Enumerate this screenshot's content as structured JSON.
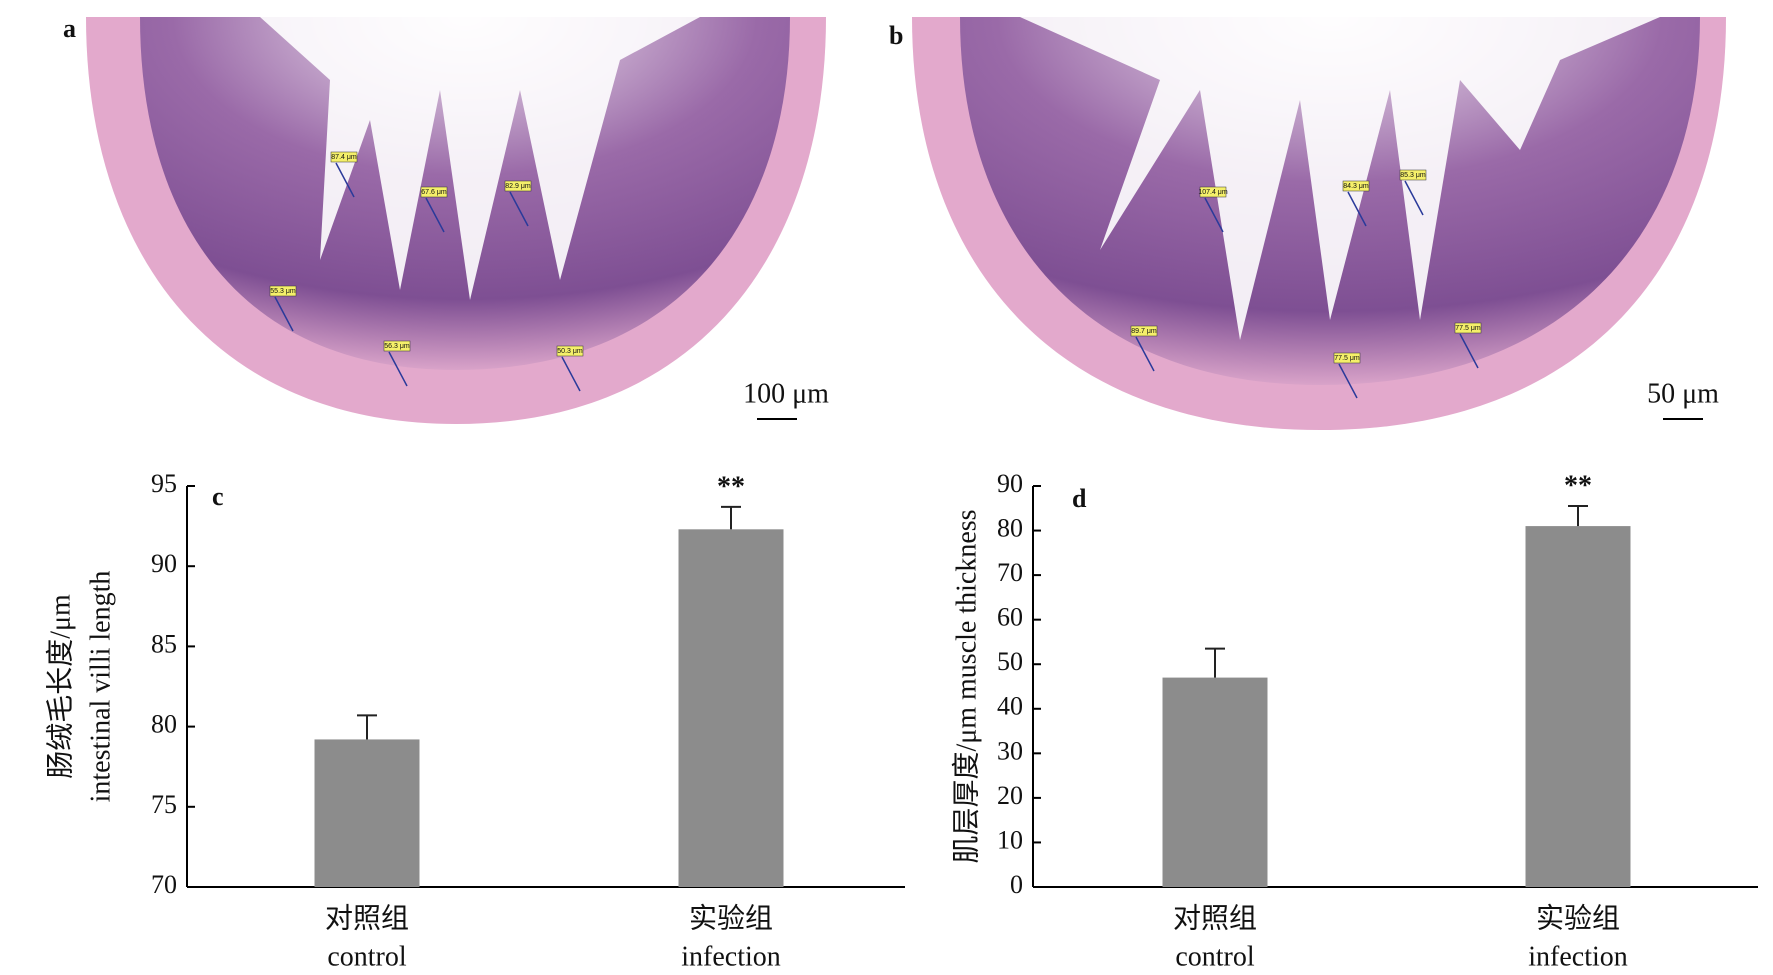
{
  "panels": [
    {
      "label": "a",
      "scale_bar": "100 μm",
      "measurements": [
        "87.4 μm",
        "67.6 μm",
        "82.9 μm",
        "55.3 μm",
        "56.3 μm",
        "50.3 μm"
      ]
    },
    {
      "label": "b",
      "scale_bar": "50 μm",
      "measurements": [
        "107.4 μm",
        "84.3 μm",
        "85.3 μm",
        "89.7 μm",
        "77.5 μm",
        "77.5 μm"
      ]
    }
  ],
  "chart_data": [
    {
      "type": "bar",
      "panel_label": "c",
      "y_label": [
        "肠绒毛长度/μm",
        "intestinal villi length"
      ],
      "categories": [
        "对照组",
        "实验组"
      ],
      "categories_en": [
        "control",
        "infection"
      ],
      "values": [
        79.2,
        92.3
      ],
      "errors": [
        1.5,
        1.4
      ],
      "annotations": [
        null,
        "**"
      ],
      "color": "#8c8c8c",
      "ylim": [
        70,
        95
      ],
      "yticks": [
        70,
        75,
        80,
        85,
        90,
        95
      ]
    },
    {
      "type": "bar",
      "panel_label": "d",
      "y_label": [
        "肌层厚度/μm muscle thickness"
      ],
      "categories": [
        "对照组",
        "实验组"
      ],
      "categories_en": [
        "control",
        "infection"
      ],
      "values": [
        47,
        81
      ],
      "errors": [
        6.5,
        4.5
      ],
      "annotations": [
        null,
        "**"
      ],
      "color": "#8c8c8c",
      "ylim": [
        0,
        90
      ],
      "yticks": [
        0,
        10,
        20,
        30,
        40,
        50,
        60,
        70,
        80,
        90
      ]
    }
  ]
}
